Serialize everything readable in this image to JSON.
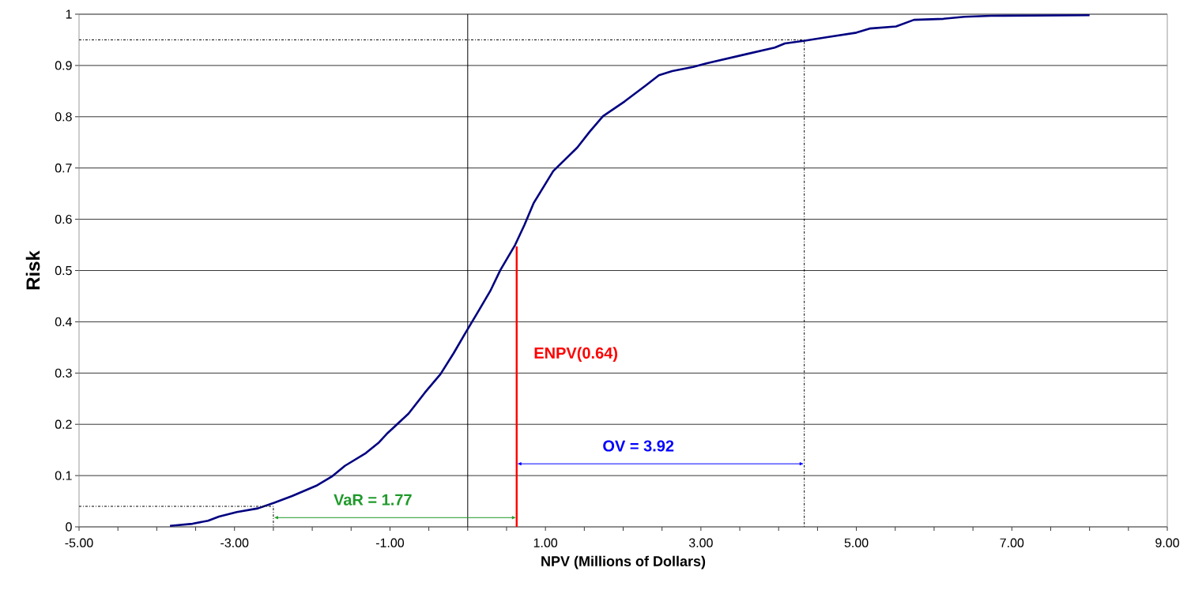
{
  "chart_data": {
    "type": "line",
    "xlabel": "NPV (Millions of Dollars)",
    "ylabel": "Risk",
    "xlim": [
      -5,
      9
    ],
    "ylim": [
      0,
      1
    ],
    "xticks": [
      {
        "value": -5,
        "label": "-5.00"
      },
      {
        "value": -4.5,
        "label": null
      },
      {
        "value": -4,
        "label": null
      },
      {
        "value": -3.5,
        "label": null
      },
      {
        "value": -3,
        "label": "-3.00"
      },
      {
        "value": -2.5,
        "label": null
      },
      {
        "value": -2,
        "label": null
      },
      {
        "value": -1.5,
        "label": null
      },
      {
        "value": -1,
        "label": "-1.00"
      },
      {
        "value": -0.5,
        "label": null
      },
      {
        "value": 0,
        "label": null
      },
      {
        "value": 0.5,
        "label": null
      },
      {
        "value": 1,
        "label": "1.00"
      },
      {
        "value": 1.5,
        "label": null
      },
      {
        "value": 2,
        "label": null
      },
      {
        "value": 2.5,
        "label": null
      },
      {
        "value": 3,
        "label": "3.00"
      },
      {
        "value": 3.5,
        "label": null
      },
      {
        "value": 4,
        "label": null
      },
      {
        "value": 4.5,
        "label": null
      },
      {
        "value": 5,
        "label": "5.00"
      },
      {
        "value": 5.5,
        "label": null
      },
      {
        "value": 6,
        "label": null
      },
      {
        "value": 6.5,
        "label": null
      },
      {
        "value": 7,
        "label": "7.00"
      },
      {
        "value": 7.5,
        "label": null
      },
      {
        "value": 8,
        "label": null
      },
      {
        "value": 8.5,
        "label": null
      },
      {
        "value": 9,
        "label": "9.00"
      }
    ],
    "yticks": [
      0,
      0.1,
      0.2,
      0.3,
      0.4,
      0.5,
      0.6,
      0.7,
      0.8,
      0.9,
      1
    ],
    "grid": "y",
    "ref_lines": [
      {
        "axis": "x",
        "value": 0,
        "color": "#000000"
      }
    ],
    "series": [
      {
        "color": "#000080",
        "x": [
          -3.83,
          -3.54,
          -3.34,
          -3.2,
          -2.97,
          -2.7,
          -2.49,
          -2.26,
          -1.95,
          -1.75,
          -1.58,
          -1.31,
          -1.14,
          -1.03,
          -0.76,
          -0.55,
          -0.35,
          -0.18,
          -0.03,
          0.15,
          0.29,
          0.42,
          0.61,
          0.73,
          0.85,
          1.1,
          1.41,
          1.57,
          1.74,
          2.02,
          2.29,
          2.46,
          2.63,
          2.9,
          3.07,
          3.58,
          3.95,
          4.08,
          4.32,
          4.66,
          5.0,
          5.17,
          5.51,
          5.74,
          6.12,
          6.39,
          6.73,
          8.0
        ],
        "values": [
          0.002,
          0.006,
          0.012,
          0.02,
          0.029,
          0.036,
          0.047,
          0.06,
          0.08,
          0.098,
          0.119,
          0.144,
          0.165,
          0.183,
          0.221,
          0.262,
          0.298,
          0.339,
          0.378,
          0.424,
          0.46,
          0.501,
          0.55,
          0.589,
          0.632,
          0.694,
          0.74,
          0.771,
          0.801,
          0.83,
          0.861,
          0.881,
          0.889,
          0.897,
          0.904,
          0.922,
          0.935,
          0.943,
          0.948,
          0.956,
          0.964,
          0.972,
          0.976,
          0.989,
          0.991,
          0.995,
          0.997,
          0.998
        ]
      },
      {
        "color": "#000000",
        "line_style": "dashed",
        "x": [
          -5,
          4.33,
          4.33
        ],
        "values": [
          0.95,
          0.95,
          0
        ]
      },
      {
        "color": "#000000",
        "line_style": "dashed",
        "x": [
          -5,
          -2.5,
          -2.5
        ],
        "values": [
          0.04,
          0.04,
          0
        ]
      },
      {
        "name": "ENPV(0.64)",
        "color": "#ff0000",
        "x": [
          0.63,
          0.63
        ],
        "values": [
          0,
          0.547
        ]
      },
      {
        "name": "OV = 3.92",
        "color": "#0000ff",
        "marker": "triangle",
        "x": [
          0.63,
          4.33
        ],
        "values": [
          0.123,
          0.123
        ]
      },
      {
        "name": "VaR = 1.77",
        "color": "#1f9a2a",
        "marker": "triangle",
        "x": [
          -2.5,
          0.63
        ],
        "values": [
          0.018,
          0.018
        ]
      }
    ]
  }
}
